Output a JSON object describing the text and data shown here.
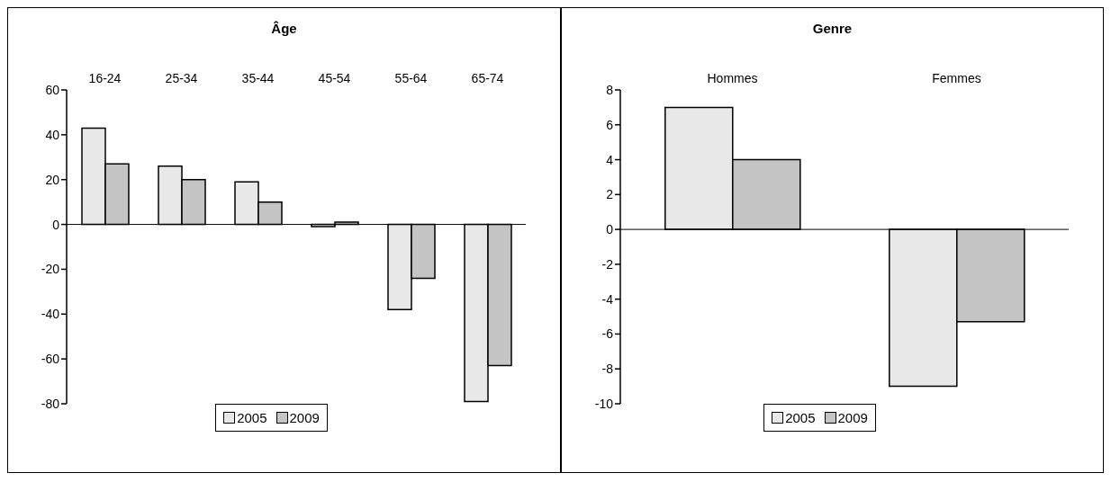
{
  "chart_data": [
    {
      "type": "bar",
      "title": "Âge",
      "categories": [
        "16-24",
        "25-34",
        "35-44",
        "45-54",
        "55-64",
        "65-74"
      ],
      "series": [
        {
          "name": "2005",
          "color": "#e8e8e8",
          "values": [
            43,
            26,
            19,
            -1,
            -38,
            -79
          ]
        },
        {
          "name": "2009",
          "color": "#c4c4c4",
          "values": [
            27,
            20,
            10,
            1,
            -24,
            -63
          ]
        }
      ],
      "ylim": [
        -80,
        60
      ],
      "yticks": [
        -80,
        -60,
        -40,
        -20,
        0,
        20,
        40,
        60
      ],
      "legend": "bottom"
    },
    {
      "type": "bar",
      "title": "Genre",
      "categories": [
        "Hommes",
        "Femmes"
      ],
      "series": [
        {
          "name": "2005",
          "color": "#e8e8e8",
          "values": [
            7,
            -9
          ]
        },
        {
          "name": "2009",
          "color": "#c4c4c4",
          "values": [
            4,
            -5.3
          ]
        }
      ],
      "ylim": [
        -10,
        8
      ],
      "yticks": [
        -10,
        -8,
        -6,
        -4,
        -2,
        0,
        2,
        4,
        6,
        8
      ],
      "legend": "bottom"
    }
  ]
}
